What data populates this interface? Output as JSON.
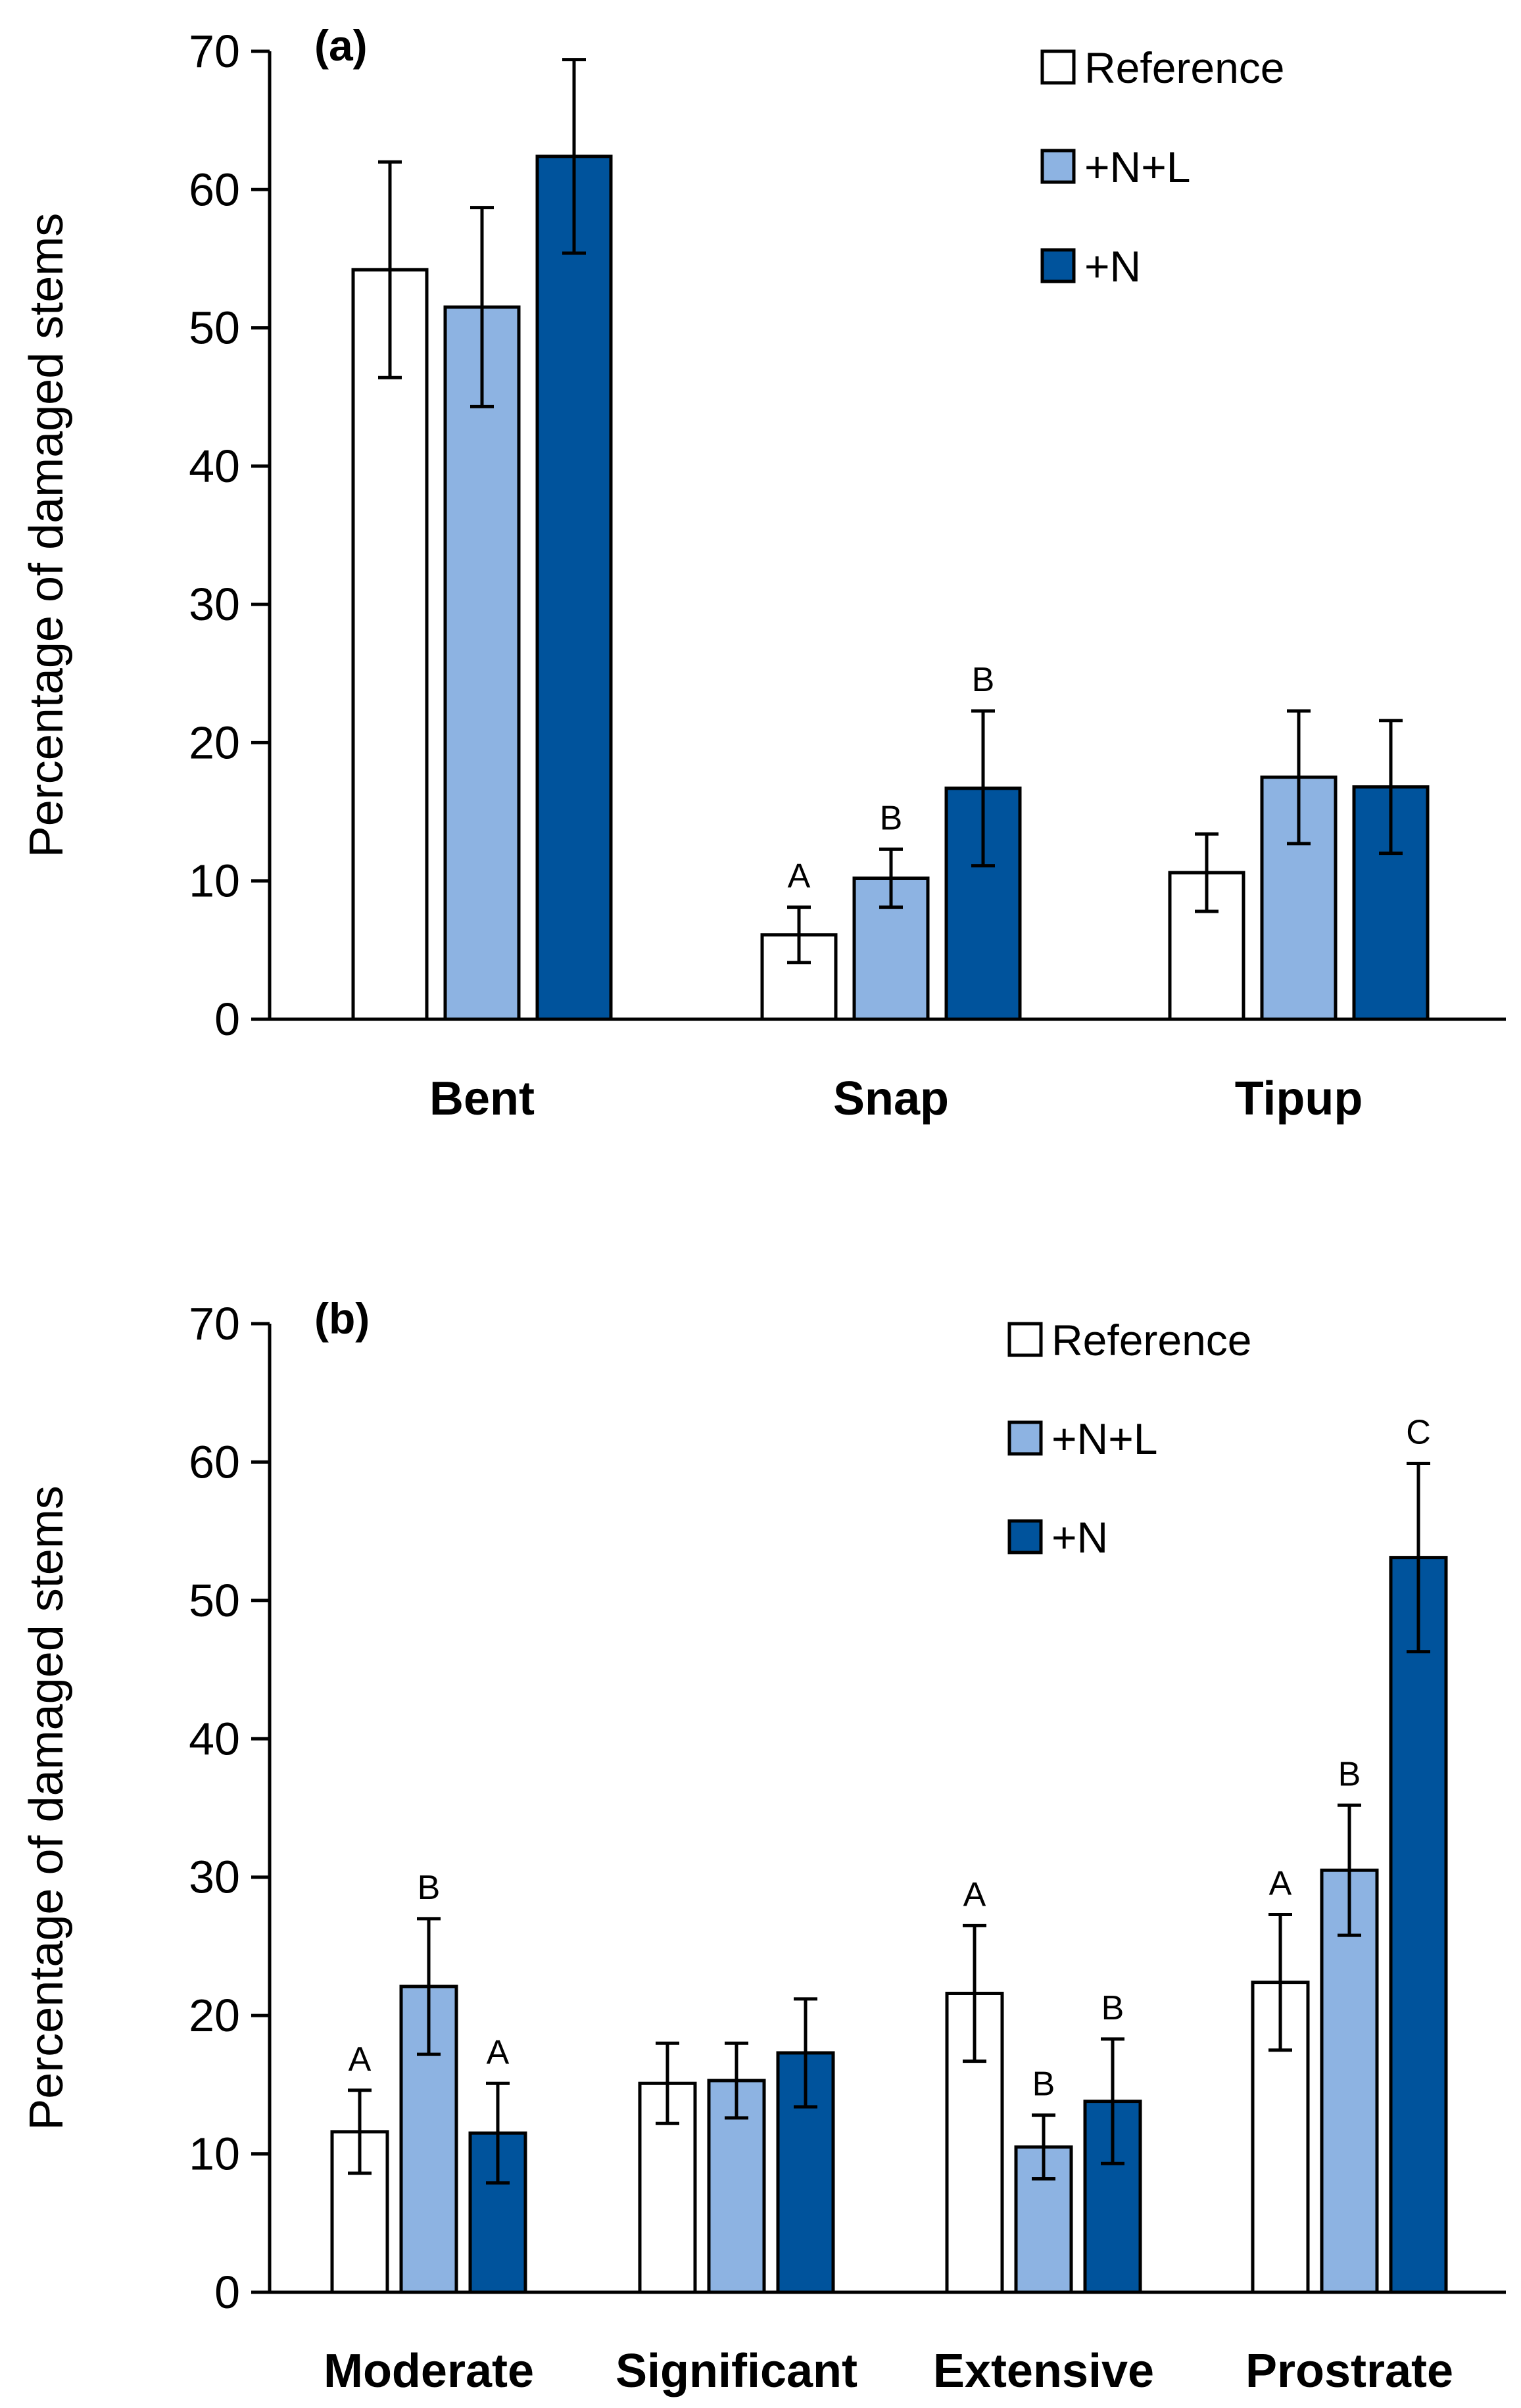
{
  "colors": {
    "Reference": "#ffffff",
    "+N+L": "#8db3e2",
    "+N": "#00539c",
    "stroke": "#000000"
  },
  "chart_data": [
    {
      "type": "bar",
      "panel_label": "(a)",
      "ylabel": "Percentage of damaged stems",
      "xlabel": "",
      "ylim": [
        0,
        70
      ],
      "yticks": [
        "0",
        "10",
        "20",
        "30",
        "40",
        "50",
        "60",
        "70"
      ],
      "grid": false,
      "legend_position": "top-right",
      "legend": [
        "Reference",
        "+N+L",
        "+N"
      ],
      "categories": [
        "Bent",
        "Snap",
        "Tipup"
      ],
      "series": [
        {
          "name": "Reference",
          "values": [
            54.2,
            6.1,
            10.6
          ],
          "errors": [
            7.8,
            2.0,
            2.8
          ]
        },
        {
          "name": "+N+L",
          "values": [
            51.5,
            10.2,
            17.5
          ],
          "errors": [
            7.2,
            2.1,
            4.8
          ]
        },
        {
          "name": "+N",
          "values": [
            62.4,
            16.7,
            16.8
          ],
          "errors": [
            7.0,
            5.6,
            4.8
          ]
        }
      ],
      "letters": [
        [
          "",
          "A",
          ""
        ],
        [
          "",
          "B",
          ""
        ],
        [
          "",
          "B",
          ""
        ]
      ]
    },
    {
      "type": "bar",
      "panel_label": "(b)",
      "ylabel": "Percentage of damaged stems",
      "xlabel": "",
      "ylim": [
        0,
        70
      ],
      "yticks": [
        "0",
        "10",
        "20",
        "30",
        "40",
        "50",
        "60",
        "70"
      ],
      "grid": false,
      "legend_position": "top-right",
      "legend": [
        "Reference",
        "+N+L",
        "+N"
      ],
      "categories": [
        "Moderate",
        "Significant",
        "Extensive",
        "Prostrate"
      ],
      "series": [
        {
          "name": "Reference",
          "values": [
            11.6,
            15.1,
            21.6,
            22.4
          ],
          "errors": [
            3.0,
            2.9,
            4.9,
            4.9
          ]
        },
        {
          "name": "+N+L",
          "values": [
            22.1,
            15.3,
            10.5,
            30.5
          ],
          "errors": [
            4.9,
            2.7,
            2.3,
            4.7
          ]
        },
        {
          "name": "+N",
          "values": [
            11.5,
            17.3,
            13.8,
            53.1
          ],
          "errors": [
            3.6,
            3.9,
            4.5,
            6.8
          ]
        }
      ],
      "letters": [
        [
          "A",
          "",
          "A",
          "A"
        ],
        [
          "B",
          "",
          "B",
          "B"
        ],
        [
          "A",
          "",
          "B",
          "C"
        ]
      ]
    }
  ]
}
